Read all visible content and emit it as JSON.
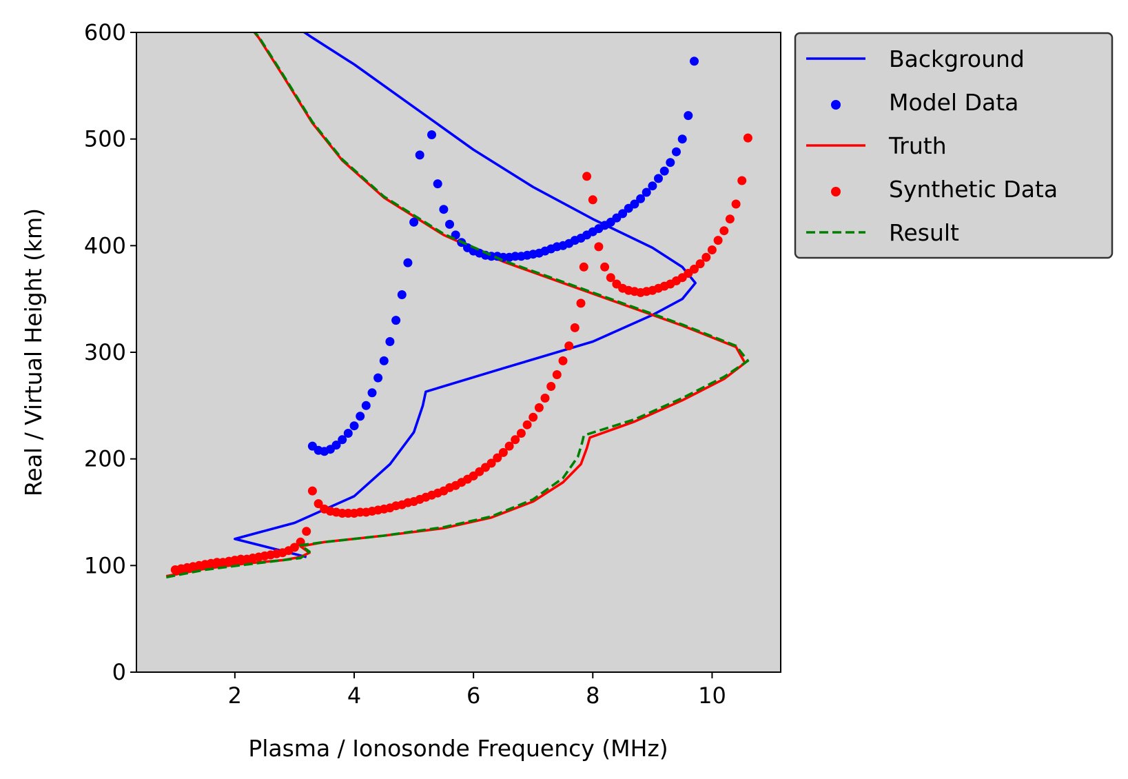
{
  "chart_data": {
    "type": "line",
    "title": "",
    "xlabel": "Plasma / Ionosonde Frequency (MHz)",
    "ylabel": "Real / Virtual Height (km)",
    "xlim": [
      0.35,
      11.15
    ],
    "ylim": [
      0,
      600
    ],
    "xticks": [
      2,
      4,
      6,
      8,
      10
    ],
    "yticks": [
      0,
      100,
      200,
      300,
      400,
      500,
      600
    ],
    "grid": false,
    "plot_background": "#d3d3d3",
    "legend_position": "outside-top-right",
    "series": [
      {
        "name": "Background",
        "kind": "line",
        "color": "#0000ff",
        "points": [
          [
            3.2,
            108
          ],
          [
            2.0,
            125
          ],
          [
            3.0,
            140
          ],
          [
            4.0,
            165
          ],
          [
            4.6,
            195
          ],
          [
            5.0,
            225
          ],
          [
            5.15,
            250
          ],
          [
            5.2,
            263
          ],
          [
            6.5,
            285
          ],
          [
            8.0,
            310
          ],
          [
            9.0,
            335
          ],
          [
            9.5,
            350
          ],
          [
            9.72,
            365
          ],
          [
            9.5,
            380
          ],
          [
            9.0,
            398
          ],
          [
            8.0,
            425
          ],
          [
            7.0,
            455
          ],
          [
            6.0,
            490
          ],
          [
            5.0,
            530
          ],
          [
            4.0,
            570
          ],
          [
            3.3,
            595
          ],
          [
            2.9,
            610
          ]
        ]
      },
      {
        "name": "Model Data",
        "kind": "scatter",
        "color": "#0000ff",
        "points": [
          [
            3.3,
            212
          ],
          [
            3.4,
            208
          ],
          [
            3.5,
            207
          ],
          [
            3.6,
            209
          ],
          [
            3.7,
            213
          ],
          [
            3.8,
            218
          ],
          [
            3.9,
            224
          ],
          [
            4.0,
            231
          ],
          [
            4.1,
            240
          ],
          [
            4.2,
            250
          ],
          [
            4.3,
            262
          ],
          [
            4.4,
            276
          ],
          [
            4.5,
            292
          ],
          [
            4.6,
            310
          ],
          [
            4.7,
            330
          ],
          [
            4.8,
            354
          ],
          [
            4.9,
            384
          ],
          [
            5.0,
            422
          ],
          [
            5.1,
            485
          ],
          [
            5.3,
            504
          ],
          [
            5.4,
            458
          ],
          [
            5.5,
            434
          ],
          [
            5.6,
            420
          ],
          [
            5.7,
            410
          ],
          [
            5.8,
            403
          ],
          [
            5.9,
            398
          ],
          [
            6.0,
            395
          ],
          [
            6.1,
            393
          ],
          [
            6.2,
            391
          ],
          [
            6.3,
            390
          ],
          [
            6.4,
            390
          ],
          [
            6.5,
            389
          ],
          [
            6.6,
            389
          ],
          [
            6.7,
            390
          ],
          [
            6.8,
            390
          ],
          [
            6.9,
            391
          ],
          [
            7.0,
            392
          ],
          [
            7.1,
            393
          ],
          [
            7.2,
            395
          ],
          [
            7.3,
            397
          ],
          [
            7.4,
            399
          ],
          [
            7.5,
            400
          ],
          [
            7.6,
            402
          ],
          [
            7.7,
            405
          ],
          [
            7.8,
            407
          ],
          [
            7.9,
            410
          ],
          [
            8.0,
            413
          ],
          [
            8.1,
            416
          ],
          [
            8.2,
            419
          ],
          [
            8.3,
            422
          ],
          [
            8.4,
            426
          ],
          [
            8.5,
            430
          ],
          [
            8.6,
            435
          ],
          [
            8.7,
            439
          ],
          [
            8.8,
            444
          ],
          [
            8.9,
            450
          ],
          [
            9.0,
            456
          ],
          [
            9.1,
            463
          ],
          [
            9.2,
            470
          ],
          [
            9.3,
            478
          ],
          [
            9.4,
            488
          ],
          [
            9.5,
            500
          ],
          [
            9.6,
            522
          ],
          [
            9.7,
            573
          ]
        ]
      },
      {
        "name": "Truth",
        "kind": "line",
        "color": "#ff0000",
        "points": [
          [
            0.85,
            90
          ],
          [
            1.5,
            97
          ],
          [
            2.2,
            102
          ],
          [
            2.8,
            105
          ],
          [
            3.1,
            108
          ],
          [
            3.25,
            112
          ],
          [
            3.1,
            118
          ],
          [
            3.5,
            122
          ],
          [
            4.5,
            128
          ],
          [
            5.5,
            135
          ],
          [
            6.3,
            145
          ],
          [
            7.0,
            160
          ],
          [
            7.5,
            178
          ],
          [
            7.8,
            195
          ],
          [
            7.9,
            210
          ],
          [
            7.95,
            220
          ],
          [
            8.7,
            235
          ],
          [
            9.5,
            255
          ],
          [
            10.2,
            275
          ],
          [
            10.55,
            290
          ],
          [
            10.4,
            305
          ],
          [
            9.5,
            325
          ],
          [
            8.5,
            345
          ],
          [
            7.5,
            365
          ],
          [
            6.5,
            385
          ],
          [
            5.5,
            410
          ],
          [
            4.5,
            445
          ],
          [
            3.8,
            480
          ],
          [
            3.3,
            515
          ],
          [
            2.8,
            560
          ],
          [
            2.4,
            595
          ],
          [
            2.3,
            602
          ]
        ]
      },
      {
        "name": "Synthetic Data",
        "kind": "scatter",
        "color": "#ff0000",
        "points": [
          [
            1.0,
            96
          ],
          [
            1.1,
            97
          ],
          [
            1.2,
            98
          ],
          [
            1.3,
            99
          ],
          [
            1.4,
            100
          ],
          [
            1.5,
            101
          ],
          [
            1.6,
            102
          ],
          [
            1.7,
            103
          ],
          [
            1.8,
            103
          ],
          [
            1.9,
            104
          ],
          [
            2.0,
            105
          ],
          [
            2.1,
            106
          ],
          [
            2.2,
            106
          ],
          [
            2.3,
            107
          ],
          [
            2.4,
            108
          ],
          [
            2.5,
            109
          ],
          [
            2.6,
            110
          ],
          [
            2.7,
            111
          ],
          [
            2.8,
            112
          ],
          [
            2.9,
            114
          ],
          [
            3.0,
            117
          ],
          [
            3.1,
            122
          ],
          [
            3.2,
            132
          ],
          [
            3.3,
            170
          ],
          [
            3.4,
            158
          ],
          [
            3.5,
            153
          ],
          [
            3.6,
            151
          ],
          [
            3.7,
            150
          ],
          [
            3.8,
            149
          ],
          [
            3.9,
            149
          ],
          [
            4.0,
            149
          ],
          [
            4.1,
            150
          ],
          [
            4.2,
            150
          ],
          [
            4.3,
            151
          ],
          [
            4.4,
            152
          ],
          [
            4.5,
            153
          ],
          [
            4.6,
            154
          ],
          [
            4.7,
            156
          ],
          [
            4.8,
            157
          ],
          [
            4.9,
            159
          ],
          [
            5.0,
            160
          ],
          [
            5.1,
            162
          ],
          [
            5.2,
            164
          ],
          [
            5.3,
            166
          ],
          [
            5.4,
            168
          ],
          [
            5.5,
            170
          ],
          [
            5.6,
            173
          ],
          [
            5.7,
            175
          ],
          [
            5.8,
            178
          ],
          [
            5.9,
            181
          ],
          [
            6.0,
            184
          ],
          [
            6.1,
            188
          ],
          [
            6.2,
            192
          ],
          [
            6.3,
            196
          ],
          [
            6.4,
            201
          ],
          [
            6.5,
            206
          ],
          [
            6.6,
            212
          ],
          [
            6.7,
            218
          ],
          [
            6.8,
            224
          ],
          [
            6.9,
            232
          ],
          [
            7.0,
            239
          ],
          [
            7.1,
            248
          ],
          [
            7.2,
            257
          ],
          [
            7.3,
            268
          ],
          [
            7.4,
            279
          ],
          [
            7.5,
            292
          ],
          [
            7.6,
            306
          ],
          [
            7.7,
            323
          ],
          [
            7.8,
            346
          ],
          [
            7.85,
            380
          ],
          [
            7.9,
            465
          ],
          [
            8.0,
            443
          ],
          [
            8.1,
            399
          ],
          [
            8.2,
            380
          ],
          [
            8.3,
            370
          ],
          [
            8.4,
            364
          ],
          [
            8.5,
            360
          ],
          [
            8.6,
            358
          ],
          [
            8.7,
            357
          ],
          [
            8.8,
            356
          ],
          [
            8.9,
            357
          ],
          [
            9.0,
            358
          ],
          [
            9.1,
            360
          ],
          [
            9.2,
            362
          ],
          [
            9.3,
            364
          ],
          [
            9.4,
            367
          ],
          [
            9.5,
            370
          ],
          [
            9.6,
            374
          ],
          [
            9.7,
            378
          ],
          [
            9.8,
            383
          ],
          [
            9.9,
            389
          ],
          [
            10.0,
            396
          ],
          [
            10.1,
            405
          ],
          [
            10.2,
            414
          ],
          [
            10.3,
            425
          ],
          [
            10.4,
            439
          ],
          [
            10.5,
            461
          ],
          [
            10.6,
            501
          ]
        ]
      },
      {
        "name": "Result",
        "kind": "line",
        "style": "dashed",
        "color": "#008000",
        "points": [
          [
            0.85,
            89
          ],
          [
            1.5,
            96
          ],
          [
            2.2,
            101
          ],
          [
            2.8,
            105
          ],
          [
            3.1,
            107
          ],
          [
            3.25,
            113
          ],
          [
            3.1,
            119
          ],
          [
            3.5,
            122
          ],
          [
            4.5,
            128
          ],
          [
            5.5,
            136
          ],
          [
            6.3,
            146
          ],
          [
            7.0,
            162
          ],
          [
            7.5,
            182
          ],
          [
            7.75,
            202
          ],
          [
            7.82,
            215
          ],
          [
            7.85,
            222
          ],
          [
            8.7,
            237
          ],
          [
            9.5,
            257
          ],
          [
            10.2,
            277
          ],
          [
            10.6,
            292
          ],
          [
            10.4,
            306
          ],
          [
            9.5,
            326
          ],
          [
            8.5,
            346
          ],
          [
            7.5,
            366
          ],
          [
            6.5,
            386
          ],
          [
            5.5,
            411
          ],
          [
            4.5,
            446
          ],
          [
            3.8,
            481
          ],
          [
            3.3,
            516
          ],
          [
            2.8,
            561
          ],
          [
            2.4,
            596
          ],
          [
            2.3,
            602
          ]
        ]
      }
    ]
  }
}
